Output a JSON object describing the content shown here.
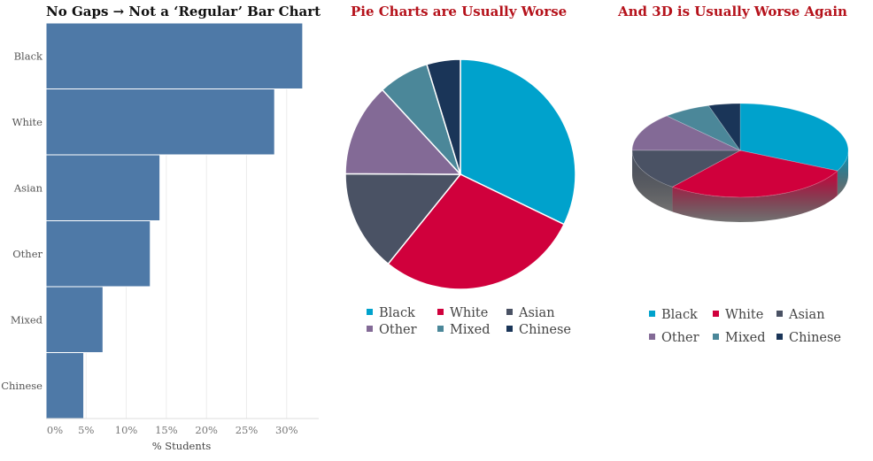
{
  "colors": {
    "bar": "#4e79a7",
    "grid": "#ececec",
    "axis_text": "#777777",
    "title_dark": "#111111",
    "title_red": "#b5121b",
    "Black": "#00a2cc",
    "White": "#d0003c",
    "Asian": "#4a5264",
    "Other": "#836a96",
    "Mixed": "#4b8799",
    "Chinese": "#1a3558"
  },
  "panels": {
    "bar_title": "No Gaps → Not a ‘Regular’ Bar Chart",
    "pie_title": "Pie Charts are Usually Worse",
    "pie3d_title": "And 3D is Usually Worse Again"
  },
  "chart_data": [
    {
      "type": "bar",
      "orientation": "horizontal",
      "title": "No Gaps → Not a ‘Regular’ Bar Chart",
      "categories": [
        "Black",
        "White",
        "Asian",
        "Other",
        "Mixed",
        "Chinese"
      ],
      "values": [
        32,
        28.5,
        14.2,
        13,
        7.1,
        4.7
      ],
      "xlabel": "% Students",
      "ylabel": "",
      "xlim": [
        0,
        34
      ],
      "xticks": [
        "0%",
        "5%",
        "10%",
        "15%",
        "20%",
        "25%",
        "30%"
      ],
      "grid": true
    },
    {
      "type": "pie",
      "title": "Pie Charts are Usually Worse",
      "labels": [
        "Black",
        "White",
        "Asian",
        "Other",
        "Mixed",
        "Chinese"
      ],
      "values": [
        32,
        28.5,
        14.2,
        13,
        7.1,
        4.7
      ],
      "legend": "bottom"
    },
    {
      "type": "pie",
      "style": "3d",
      "title": "And 3D is Usually Worse Again",
      "labels": [
        "Black",
        "White",
        "Asian",
        "Other",
        "Mixed",
        "Chinese"
      ],
      "values": [
        32,
        28.5,
        14.2,
        13,
        7.1,
        4.7
      ],
      "legend": "bottom"
    }
  ]
}
